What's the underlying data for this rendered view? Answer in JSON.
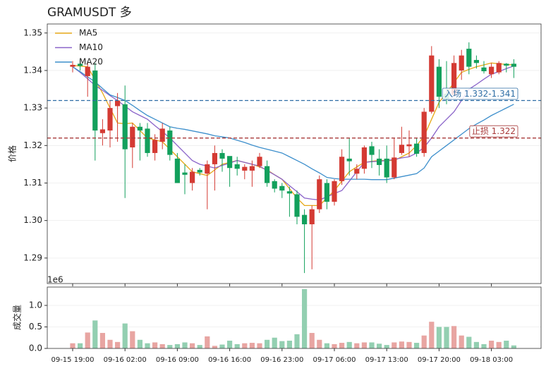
{
  "chart_data": [
    {
      "type": "candlestick",
      "title": "GRAMUSDT  多",
      "ylabel": "价格",
      "ylim": [
        1.2832,
        1.3524
      ],
      "yticks": [
        1.29,
        {
          "value": 1.3,
          "label": "1.30"
        },
        1.31,
        1.32,
        1.33,
        1.34,
        1.35
      ],
      "grid": true,
      "legend": "upper left",
      "up_color": "#d43a33",
      "down_color": "#12a05c",
      "open": [
        1.341,
        1.3418,
        1.3385,
        1.34,
        1.3233,
        1.324,
        1.3305,
        1.331,
        1.3195,
        1.325,
        1.3245,
        1.318,
        1.321,
        1.324,
        1.3165,
        1.3128,
        1.31,
        1.3135,
        1.3125,
        1.315,
        1.318,
        1.3172,
        1.315,
        1.3133,
        1.3133,
        1.3145,
        1.3145,
        1.3105,
        1.3092,
        1.3078,
        1.307,
        1.3015,
        1.299,
        1.303,
        1.31,
        1.305,
        1.3105,
        1.3165,
        1.3125,
        1.3138,
        1.3198,
        1.3165,
        1.3165,
        1.3115,
        1.318,
        1.3198,
        1.3205,
        1.318,
        1.329,
        1.341,
        1.3338,
        1.3335,
        1.34,
        1.3458,
        1.3428,
        1.3408,
        1.339,
        1.3395,
        1.3418,
        1.3418
      ],
      "high": [
        1.3425,
        1.343,
        1.342,
        1.342,
        1.327,
        1.332,
        1.334,
        1.336,
        1.326,
        1.326,
        1.326,
        1.323,
        1.326,
        1.325,
        1.318,
        1.315,
        1.314,
        1.314,
        1.316,
        1.32,
        1.319,
        1.317,
        1.317,
        1.315,
        1.316,
        1.318,
        1.316,
        1.311,
        1.31,
        1.309,
        1.308,
        1.303,
        1.304,
        1.312,
        1.311,
        1.311,
        1.319,
        1.322,
        1.315,
        1.32,
        1.321,
        1.319,
        1.32,
        1.322,
        1.325,
        1.324,
        1.322,
        1.33,
        1.3465,
        1.343,
        1.3425,
        1.344,
        1.3455,
        1.3475,
        1.344,
        1.3425,
        1.342,
        1.3425,
        1.342,
        1.343
      ],
      "low": [
        1.3395,
        1.34,
        1.333,
        1.316,
        1.32,
        1.3195,
        1.321,
        1.306,
        1.314,
        1.316,
        1.317,
        1.316,
        1.319,
        1.316,
        1.31,
        1.307,
        1.308,
        1.312,
        1.303,
        1.308,
        1.313,
        1.309,
        1.312,
        1.311,
        1.309,
        1.314,
        1.309,
        1.3075,
        1.306,
        1.301,
        1.299,
        1.286,
        1.287,
        1.302,
        1.303,
        1.304,
        1.3095,
        1.312,
        1.311,
        1.3125,
        1.314,
        1.312,
        1.31,
        1.311,
        1.3175,
        1.317,
        1.317,
        1.317,
        1.3285,
        1.33,
        1.331,
        1.333,
        1.3375,
        1.339,
        1.3405,
        1.3392,
        1.338,
        1.339,
        1.3395,
        1.338
      ],
      "close": [
        1.3415,
        1.3412,
        1.341,
        1.324,
        1.3243,
        1.33,
        1.332,
        1.319,
        1.325,
        1.324,
        1.318,
        1.3215,
        1.3245,
        1.3175,
        1.31,
        1.3122,
        1.313,
        1.3128,
        1.315,
        1.318,
        1.3165,
        1.314,
        1.3138,
        1.3143,
        1.3145,
        1.317,
        1.31,
        1.3085,
        1.308,
        1.3072,
        1.301,
        1.299,
        1.303,
        1.311,
        1.305,
        1.3105,
        1.317,
        1.3158,
        1.3138,
        1.3195,
        1.3175,
        1.3148,
        1.3115,
        1.3168,
        1.3202,
        1.3203,
        1.3178,
        1.329,
        1.344,
        1.333,
        1.3325,
        1.342,
        1.344,
        1.341,
        1.342,
        1.3398,
        1.341,
        1.342,
        1.3413,
        1.341
      ],
      "series": [
        {
          "name": "MA5",
          "color": "#e6a817",
          "values": [
            1.3413,
            1.3412,
            1.341,
            1.3375,
            1.334,
            1.33,
            1.326,
            1.3258,
            1.326,
            1.324,
            1.322,
            1.3215,
            1.321,
            1.319,
            1.317,
            1.315,
            1.313,
            1.3125,
            1.312,
            1.3135,
            1.315,
            1.3155,
            1.316,
            1.3155,
            1.315,
            1.3143,
            1.3135,
            1.3122,
            1.311,
            1.3085,
            1.306,
            1.304,
            1.304,
            1.304,
            1.306,
            1.308,
            1.3105,
            1.313,
            1.3143,
            1.3155,
            1.3158,
            1.316,
            1.316,
            1.316,
            1.317,
            1.318,
            1.32,
            1.3225,
            1.327,
            1.3315,
            1.334,
            1.3368,
            1.3395,
            1.3403,
            1.341,
            1.3415,
            1.342,
            1.3418,
            1.3416,
            1.3415
          ]
        },
        {
          "name": "MA10",
          "color": "#8a63c9",
          "values": [
            1.341,
            1.3395,
            1.3378,
            1.336,
            1.3347,
            1.3333,
            1.332,
            1.3305,
            1.329,
            1.328,
            1.327,
            1.3253,
            1.3237,
            1.322,
            1.32,
            1.318,
            1.316,
            1.315,
            1.3145,
            1.314,
            1.3147,
            1.3153,
            1.316,
            1.3155,
            1.315,
            1.3145,
            1.3133,
            1.3122,
            1.311,
            1.3093,
            1.3077,
            1.306,
            1.3057,
            1.3055,
            1.3063,
            1.3072,
            1.308,
            1.3105,
            1.313,
            1.3155,
            1.3157,
            1.3158,
            1.316,
            1.3163,
            1.3167,
            1.317,
            1.318,
            1.3195,
            1.322,
            1.325,
            1.327,
            1.329,
            1.332,
            1.335,
            1.3363,
            1.3377,
            1.339,
            1.3397,
            1.3405,
            1.3412
          ]
        },
        {
          "name": "MA20",
          "color": "#3d8fcc",
          "values": [
            1.341,
            1.3397,
            1.3383,
            1.337,
            1.3352,
            1.3335,
            1.3328,
            1.332,
            1.3307,
            1.3293,
            1.328,
            1.327,
            1.326,
            1.325,
            1.3246,
            1.3243,
            1.3239,
            1.3235,
            1.3231,
            1.3226,
            1.3223,
            1.322,
            1.3214,
            1.3208,
            1.3201,
            1.3195,
            1.319,
            1.3185,
            1.318,
            1.317,
            1.316,
            1.315,
            1.3138,
            1.3127,
            1.3115,
            1.3112,
            1.311,
            1.311,
            1.311,
            1.311,
            1.3109,
            1.3109,
            1.3109,
            1.3113,
            1.3117,
            1.3121,
            1.3125,
            1.314,
            1.317,
            1.3185,
            1.32,
            1.3215,
            1.323,
            1.3245,
            1.3257,
            1.3268,
            1.328,
            1.329,
            1.33,
            1.331
          ]
        }
      ],
      "hlines": [
        {
          "value": 1.332,
          "label": "入场 1.332-1.341",
          "color": "#2f6ea5"
        },
        {
          "value": 1.322,
          "label": "止损 1.322",
          "color": "#a83a3a"
        }
      ]
    },
    {
      "type": "bar",
      "ylabel": "成交量",
      "offset_label": "1e6",
      "ylim": [
        0,
        1.426
      ],
      "yticks": [
        {
          "value": 0,
          "label": "0.0"
        },
        {
          "value": 0.5,
          "label": "0.5"
        },
        {
          "value": 1,
          "label": "1.0"
        }
      ],
      "grid": true,
      "up_color": "#e8a5a2",
      "down_color": "#93cfb1",
      "categories": [
        "09-15 19:00",
        null,
        null,
        null,
        null,
        null,
        null,
        "09-16 02:00",
        null,
        null,
        null,
        null,
        null,
        null,
        "09-16 09:00",
        null,
        null,
        null,
        null,
        null,
        null,
        "09-16 16:00",
        null,
        null,
        null,
        null,
        null,
        null,
        "09-16 23:00",
        null,
        null,
        null,
        null,
        null,
        null,
        "09-17 06:00",
        null,
        null,
        null,
        null,
        null,
        null,
        "09-17 13:00",
        null,
        null,
        null,
        null,
        null,
        null,
        "09-17 20:00",
        null,
        null,
        null,
        null,
        null,
        null,
        "09-18 03:00",
        null,
        null,
        null
      ],
      "values": [
        0.12,
        0.12,
        0.37,
        0.65,
        0.36,
        0.2,
        0.15,
        0.58,
        0.4,
        0.2,
        0.12,
        0.14,
        0.1,
        0.08,
        0.1,
        0.14,
        0.12,
        0.08,
        0.28,
        0.06,
        0.09,
        0.18,
        0.1,
        0.12,
        0.13,
        0.12,
        0.2,
        0.25,
        0.17,
        0.18,
        0.33,
        1.38,
        0.36,
        0.2,
        0.12,
        0.1,
        0.13,
        0.15,
        0.12,
        0.14,
        0.14,
        0.11,
        0.08,
        0.14,
        0.16,
        0.15,
        0.13,
        0.3,
        0.62,
        0.5,
        0.5,
        0.52,
        0.3,
        0.27,
        0.15,
        0.1,
        0.18,
        0.15,
        0.18,
        0.07
      ]
    }
  ]
}
